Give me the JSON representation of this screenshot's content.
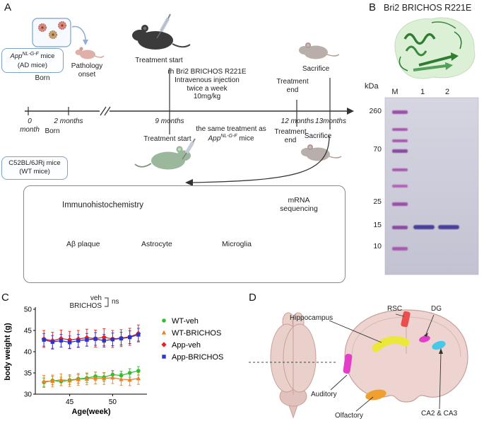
{
  "figure": {
    "panel_a_label": "A",
    "panel_b_label": "B",
    "panel_c_label": "C",
    "panel_d_label": "D"
  },
  "panelA": {
    "ad_box": {
      "gene_pre": "App",
      "gene_sup": "NL-G-F",
      "gene_post": " mice",
      "line2": "(AD mice)"
    },
    "wt_box": {
      "line1": "C52BL/6JRj mice",
      "line2": "(WT mice)"
    },
    "born_top": "Born",
    "born_bottom": "Born",
    "pathology_onset": "Pathology\nonset",
    "treatment_start_top": "Treatment start",
    "treatment_start_bottom": "Treatment start",
    "treatment_end_top": "Treatment\nend",
    "treatment_end_bottom": "Treatment\nend",
    "sacrifice_top": "Sacrifice",
    "sacrifice_bottom": "Sacrifice",
    "injection_info": "rh Bri2 BRICHOS R221E\nIntravenous injection\ntwice a week\n10mg/kg",
    "same_treatment_line1": "the same treatment as",
    "same_treatment_gene_pre": "App",
    "same_treatment_gene_sup": "NL-G-F",
    "same_treatment_gene_post": " mice",
    "timeline": [
      "0 month",
      "2 months",
      "9 months",
      "12 months",
      "13months"
    ],
    "results": {
      "ihc_title": "Immunohistochemistry",
      "mrna_title": "mRNA\nsequencing",
      "items": [
        "Aβ plaque",
        "Astrocyte",
        "Microglia"
      ]
    }
  },
  "panelB": {
    "title": "Bri2 BRICHOS R221E",
    "kda": "kDa",
    "lanes": [
      "M",
      "1",
      "2"
    ],
    "markers": [
      "260",
      "70",
      "25",
      "15",
      "10"
    ]
  },
  "chart_data": {
    "type": "line",
    "x": [
      42,
      43,
      44,
      45,
      46,
      47,
      48,
      49,
      50,
      51,
      52,
      53
    ],
    "series": [
      {
        "name": "WT-veh",
        "color": "#2fbf2f",
        "marker": "circle",
        "err": 1.0,
        "values": [
          32.8,
          33.2,
          33.0,
          33.3,
          33.6,
          33.8,
          34.2,
          34.0,
          34.6,
          34.4,
          35.0,
          35.5
        ]
      },
      {
        "name": "WT-BRICHOS",
        "color": "#e8822a",
        "marker": "triangle",
        "err": 1.4,
        "values": [
          33.0,
          33.1,
          33.4,
          33.2,
          33.5,
          33.6,
          33.8,
          33.7,
          33.9,
          33.5,
          33.4,
          33.7
        ]
      },
      {
        "name": "App-veh",
        "color": "#e42320",
        "marker": "diamond",
        "err": 2.0,
        "values": [
          43.0,
          42.6,
          43.1,
          42.8,
          43.0,
          43.3,
          43.1,
          43.4,
          43.0,
          43.2,
          43.5,
          44.3
        ]
      },
      {
        "name": "App-BRICHOS",
        "color": "#2b35c8",
        "marker": "square",
        "err": 1.5,
        "values": [
          42.8,
          42.3,
          42.6,
          42.2,
          42.6,
          42.8,
          43.0,
          42.6,
          42.9,
          43.1,
          43.4,
          44.0
        ]
      }
    ],
    "title": "",
    "xlabel": "Age(week)",
    "ylabel": "body weight (g)",
    "xlim": [
      41,
      54
    ],
    "ylim": [
      30,
      50
    ],
    "xticks": [
      45,
      50
    ],
    "yticks": [
      30,
      35,
      40,
      45,
      50
    ],
    "grid": false,
    "legend_position": "right",
    "annotation": {
      "veh": "veh",
      "brichos": "BRICHOS",
      "sig": "ns"
    }
  },
  "panelD": {
    "labels": {
      "hippocampus": "Hippocampus",
      "rsc": "RSC",
      "dg": "DG",
      "auditory": "Auditory",
      "olfactory": "Olfactory",
      "ca2_ca3": "CA2 & CA3"
    },
    "region_colors": {
      "hippocampus": "#ece83a",
      "rsc": "#e85050",
      "dg": "#e23ec8",
      "auditory": "#e23ec8",
      "olfactory": "#f0a030",
      "ca2_ca3": "#48c8e8"
    }
  }
}
